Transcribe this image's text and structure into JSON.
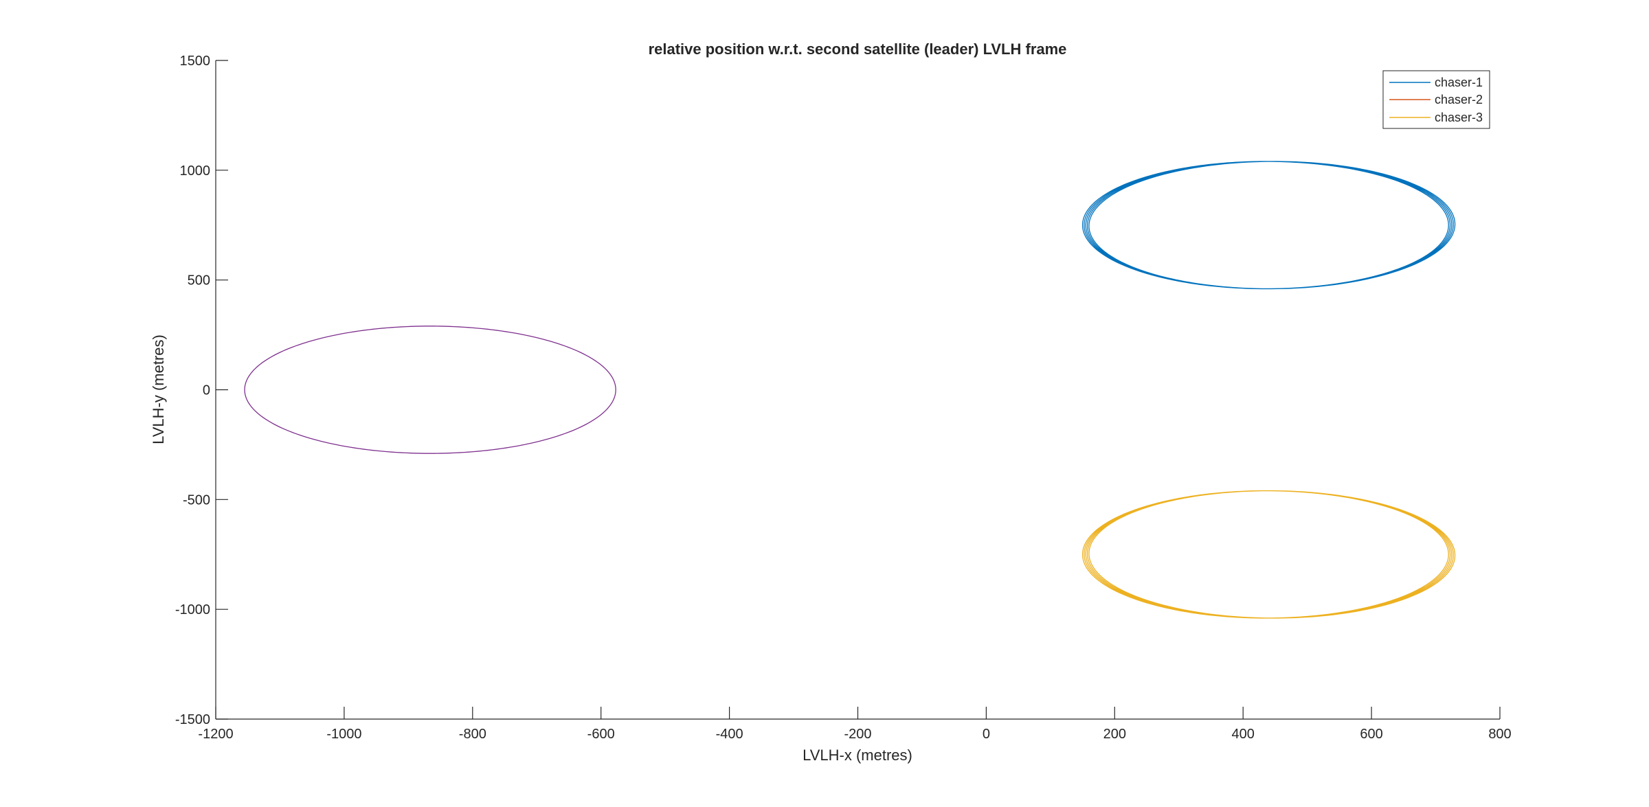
{
  "chart_data": {
    "type": "line",
    "title": "relative position w.r.t. second satellite (leader) LVLH frame",
    "xlabel": "LVLH-x (metres)",
    "ylabel": "LVLH-y (metres)",
    "xlim": [
      -1200,
      800
    ],
    "ylim": [
      -1500,
      1500
    ],
    "xticks": [
      -1200,
      -1000,
      -800,
      -600,
      -400,
      -200,
      0,
      200,
      400,
      600,
      800
    ],
    "yticks": [
      -1500,
      -1000,
      -500,
      0,
      500,
      1000,
      1500
    ],
    "xtick_labels": [
      "-1200",
      "-1000",
      "-800",
      "-600",
      "-400",
      "-200",
      "0",
      "200",
      "400",
      "600",
      "800"
    ],
    "ytick_labels": [
      "-1500",
      "-1000",
      "-500",
      "0",
      "500",
      "1000",
      "1500"
    ],
    "grid": false,
    "legend_position": "top-right",
    "legend": [
      "chaser-1",
      "chaser-2",
      "chaser-3"
    ],
    "series": [
      {
        "name": "chaser-1",
        "color": "#0072BD",
        "shape": "ellipse-orbits",
        "center": [
          435,
          750
        ],
        "semi_axes": [
          285,
          290
        ],
        "loops": 5,
        "drift_x": 10,
        "drift_y": 4
      },
      {
        "name": "chaser-2",
        "color": "#D95319",
        "shape": "ellipse-orbits",
        "center": [
          -866,
          0
        ],
        "semi_axes": [
          289,
          290
        ],
        "loops": 1,
        "drift_x": 0,
        "drift_y": 0,
        "note_color_as_rendered": "#7E2F8E"
      },
      {
        "name": "chaser-3",
        "color": "#EDB120",
        "shape": "ellipse-orbits",
        "center": [
          435,
          -750
        ],
        "semi_axes": [
          285,
          290
        ],
        "loops": 5,
        "drift_x": 10,
        "drift_y": -4
      }
    ]
  }
}
